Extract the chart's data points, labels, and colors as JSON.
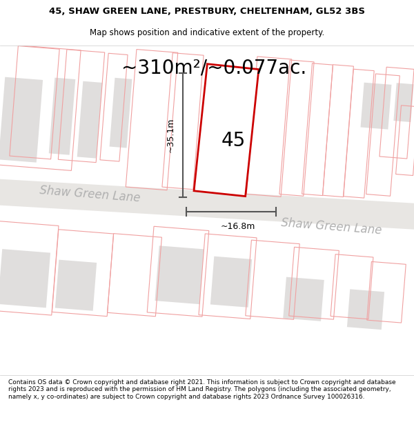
{
  "title_line1": "45, SHAW GREEN LANE, PRESTBURY, CHELTENHAM, GL52 3BS",
  "title_line2": "Map shows position and indicative extent of the property.",
  "area_label": "~310m²/~0.077ac.",
  "dim_vertical": "~35.1m",
  "dim_horizontal": "~16.8m",
  "label_45": "45",
  "road_label1": "Shaw Green Lane",
  "road_label2": "Shaw Green Lane",
  "footer": "Contains OS data © Crown copyright and database right 2021. This information is subject to Crown copyright and database rights 2023 and is reproduced with the permission of HM Land Registry. The polygons (including the associated geometry, namely x, y co-ordinates) are subject to Crown copyright and database rights 2023 Ordnance Survey 100026316.",
  "map_bg": "#ffffff",
  "road_color": "#e8e6e3",
  "building_fill": "#e0dedd",
  "parcel_line_color": "#f0a0a0",
  "property_line_color": "#cc0000",
  "dim_line_color": "#555555",
  "title_fontsize": 9.5,
  "subtitle_fontsize": 8.5,
  "area_fontsize": 20,
  "label_45_fontsize": 20,
  "road_fontsize": 12,
  "footer_fontsize": 6.5
}
